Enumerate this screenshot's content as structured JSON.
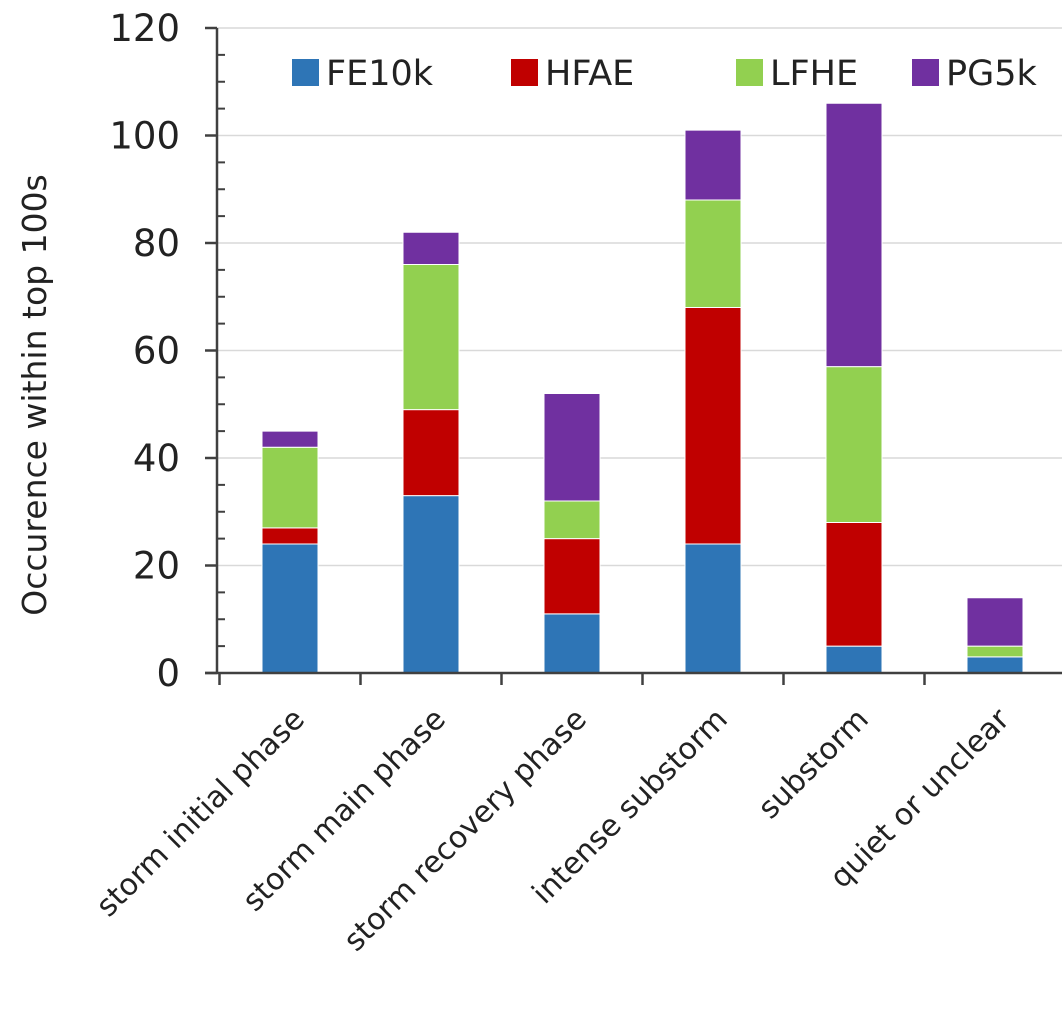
{
  "chart_data": {
    "type": "bar",
    "stacked": true,
    "categories": [
      "storm initial  phase",
      "storm main phase",
      "storm recovery phase",
      "intense substorm",
      "substorm",
      "quiet or unclear"
    ],
    "series": [
      {
        "name": "FE10k",
        "color": "#2e75b6",
        "values": [
          24,
          33,
          11,
          24,
          5,
          3
        ]
      },
      {
        "name": "HFAE",
        "color": "#c00000",
        "values": [
          3,
          16,
          14,
          44,
          23,
          0
        ]
      },
      {
        "name": "LFHE",
        "color": "#92d050",
        "values": [
          15,
          27,
          7,
          20,
          29,
          2
        ]
      },
      {
        "name": "PG5k",
        "color": "#7030a0",
        "values": [
          3,
          6,
          20,
          13,
          49,
          9
        ]
      }
    ],
    "title": "",
    "xlabel": "",
    "ylabel": "Occurence within top 100s",
    "ylim": [
      0,
      120
    ],
    "yticks": [
      0,
      20,
      40,
      60,
      80,
      100,
      120
    ],
    "grid": true,
    "legend_position": "top"
  }
}
